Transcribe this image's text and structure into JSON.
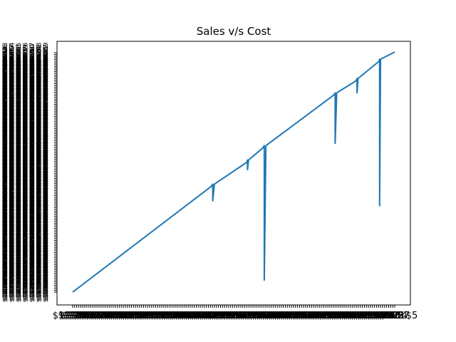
{
  "chart_data": {
    "type": "line",
    "title": "Sales v/s Cost",
    "xlabel": "",
    "ylabel": "",
    "grid": false,
    "x_ticks_note": "x and y are categorical axes with hundreds of overlapping dollar-formatted tick labels",
    "x_tick_label_first": "$1",
    "x_tick_label_last": "$5",
    "y_tick_label_prefix": "$",
    "series": [
      {
        "color": "#1f77b4",
        "x": [
          0,
          0.43,
          0.435,
          0.435,
          0.44,
          0.54,
          0.543,
          0.543,
          0.546,
          0.59,
          0.595,
          0.595,
          0.6,
          0.81,
          0.815,
          0.815,
          0.82,
          0.88,
          0.883,
          0.883,
          0.886,
          0.95,
          0.953,
          0.953,
          0.956,
          1.0
        ],
        "y": [
          0,
          0.44,
          0.45,
          0.38,
          0.45,
          0.54,
          0.55,
          0.51,
          0.55,
          0.6,
          0.61,
          0.05,
          0.61,
          0.82,
          0.83,
          0.62,
          0.83,
          0.88,
          0.89,
          0.83,
          0.89,
          0.96,
          0.97,
          0.36,
          0.97,
          1.0
        ]
      }
    ]
  }
}
